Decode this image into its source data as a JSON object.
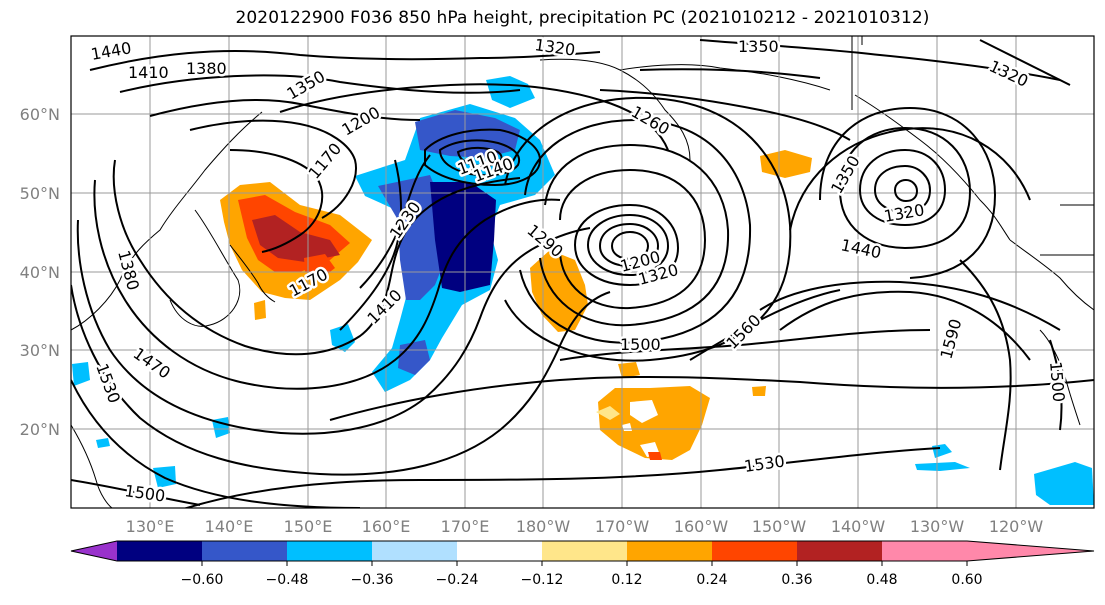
{
  "title": "2020122900 F036 850 hPa height, precipitation PC (2021010212 - 2021010312)",
  "axes": {
    "lat_labels": [
      "60°N",
      "50°N",
      "40°N",
      "30°N",
      "20°N"
    ],
    "lon_labels": [
      "130°E",
      "140°E",
      "150°E",
      "160°E",
      "170°E",
      "180°W",
      "170°W",
      "160°W",
      "150°W",
      "140°W",
      "130°W",
      "120°W"
    ]
  },
  "contour_labels": [
    "1440",
    "1410",
    "1380",
    "1320",
    "1350",
    "1320",
    "1350",
    "1320",
    "1260",
    "1200",
    "1170",
    "1110",
    "1140",
    "1230",
    "1290",
    "1200",
    "1350",
    "1320",
    "1440",
    "1380",
    "1470",
    "1530",
    "1410",
    "1170",
    "1500",
    "1560",
    "1590",
    "1500",
    "1530",
    "1500"
  ],
  "colorbar": {
    "ticks": [
      "−0.60",
      "−0.48",
      "−0.36",
      "−0.24",
      "−0.12",
      "0.12",
      "0.24",
      "0.36",
      "0.48",
      "0.60"
    ],
    "colors": [
      "#9932cc",
      "#000080",
      "#3557c9",
      "#00bfff",
      "#b0e0ff",
      "#ffffff",
      "#ffe68a",
      "#ffa500",
      "#ff4500",
      "#b22222",
      "#ff88aa"
    ]
  }
}
